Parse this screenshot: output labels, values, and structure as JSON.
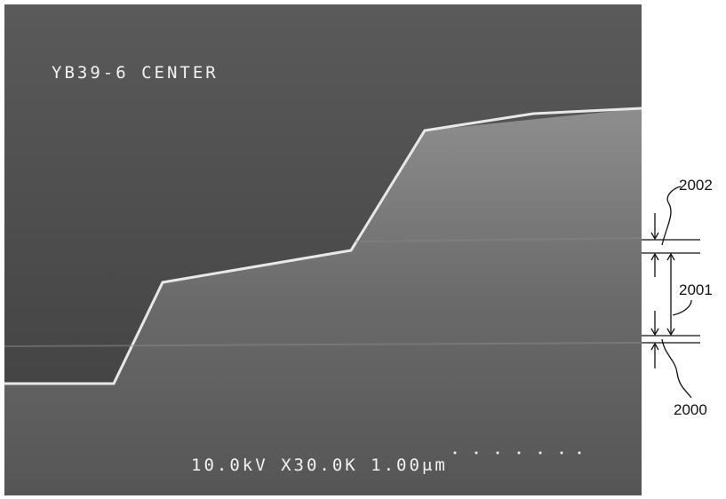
{
  "micrograph": {
    "caption": "YB39-6 CENTER",
    "info": "10.0kV X30.0K 1.00μm"
  },
  "labels": [
    {
      "label": "2002"
    },
    {
      "label": "2001"
    },
    {
      "label": "2000"
    }
  ]
}
